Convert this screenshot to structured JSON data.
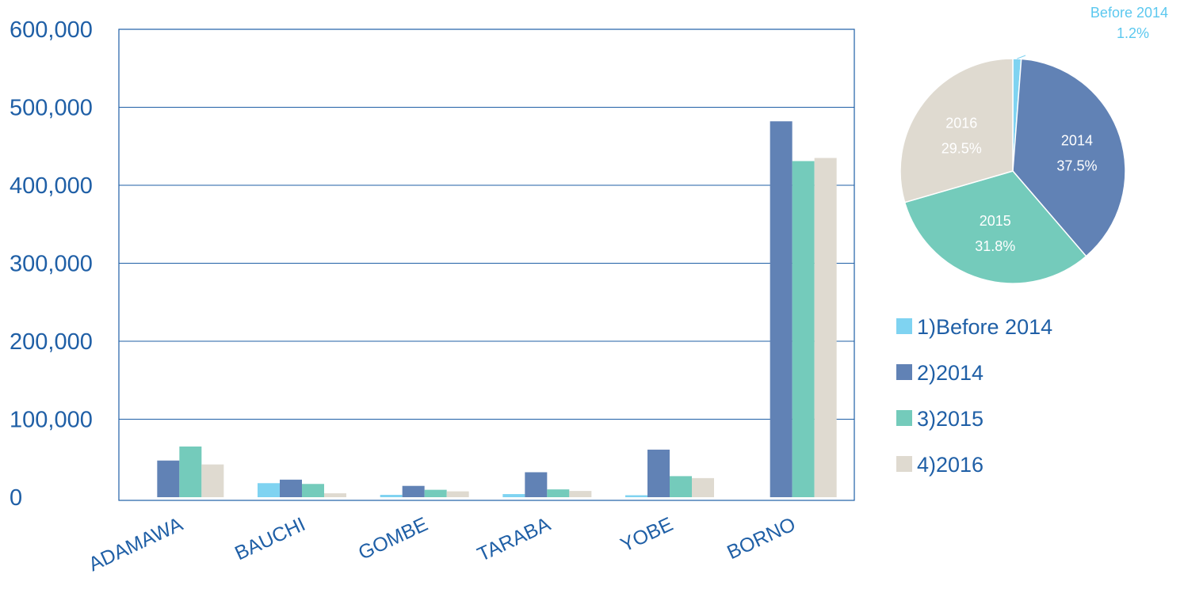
{
  "chart_data": [
    {
      "type": "bar",
      "categories": [
        "ADAMAWA",
        "BAUCHI",
        "GOMBE",
        "TARABA",
        "YOBE",
        "BORNO"
      ],
      "series": [
        {
          "name": "1)Before 2014",
          "color": "#7fd3f1",
          "values": [
            0,
            18000,
            3000,
            4000,
            2500,
            0
          ]
        },
        {
          "name": "2)2014",
          "color": "#6182b5",
          "values": [
            47000,
            22500,
            14500,
            32000,
            61000,
            482000
          ]
        },
        {
          "name": "3)2015",
          "color": "#74cbbb",
          "values": [
            65000,
            17000,
            9500,
            10000,
            27000,
            431000
          ]
        },
        {
          "name": "4)2016",
          "color": "#dfdad0",
          "values": [
            42000,
            5000,
            7500,
            8000,
            24500,
            435000
          ]
        }
      ],
      "yticks": [
        "0",
        "100,000",
        "200,000",
        "300,000",
        "400,000",
        "500,000",
        "600,000"
      ],
      "ylim": [
        0,
        600000
      ],
      "grid": true,
      "xlabel": "",
      "ylabel": ""
    },
    {
      "type": "pie",
      "slices": [
        {
          "name": "Before 2014",
          "label": "Before 2014",
          "pct": "1.2%",
          "value": 1.2,
          "color": "#7fd3f1"
        },
        {
          "name": "2014",
          "label": "2014",
          "pct": "37.5%",
          "value": 37.5,
          "color": "#6182b5"
        },
        {
          "name": "2015",
          "label": "2015",
          "pct": "31.8%",
          "value": 31.8,
          "color": "#74cbbb"
        },
        {
          "name": "2016",
          "label": "2016",
          "pct": "29.5%",
          "value": 29.5,
          "color": "#dfdad0"
        }
      ],
      "legend_position": "below pie"
    }
  ],
  "colors": {
    "text": "#1f5fa6",
    "axis": "#1f5fa6",
    "grid": "#1f5fa6"
  }
}
